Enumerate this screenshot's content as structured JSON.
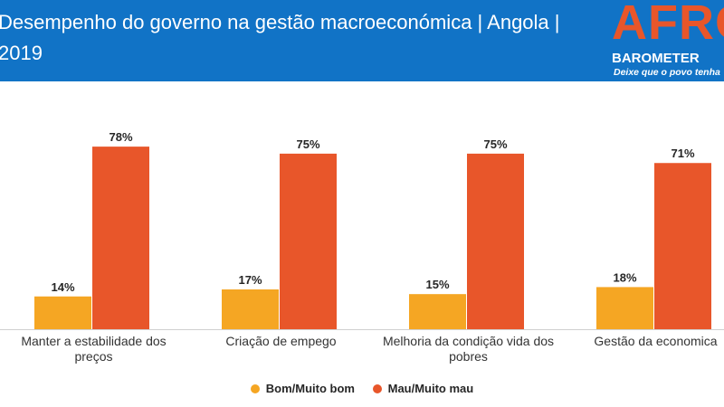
{
  "header": {
    "title": "Desempenho do governo na gestão macroeconómica | Angola | 2019",
    "logo_main": "AFRO",
    "logo_sub": "BAROMETER",
    "logo_tagline": "Deixe que o povo tenha"
  },
  "colors": {
    "header_bg": "#1173c6",
    "series_good": "#f5a623",
    "series_bad": "#e8562a"
  },
  "chart_data": {
    "type": "bar",
    "categories": [
      "Manter a estabilidade dos preços",
      "Criação de empego",
      "Melhoria da condição vida dos pobres",
      "Gestão da economica"
    ],
    "series": [
      {
        "name": "Bom/Muito bom",
        "values": [
          14,
          17,
          15,
          18
        ]
      },
      {
        "name": "Mau/Muito mau",
        "values": [
          78,
          75,
          75,
          71
        ]
      }
    ],
    "data_labels": [
      [
        "14%",
        "17%",
        "15%",
        "18%"
      ],
      [
        "78%",
        "75%",
        "75%",
        "71%"
      ]
    ],
    "ylim": [
      0,
      85
    ],
    "grid": false,
    "legend_position": "bottom"
  }
}
